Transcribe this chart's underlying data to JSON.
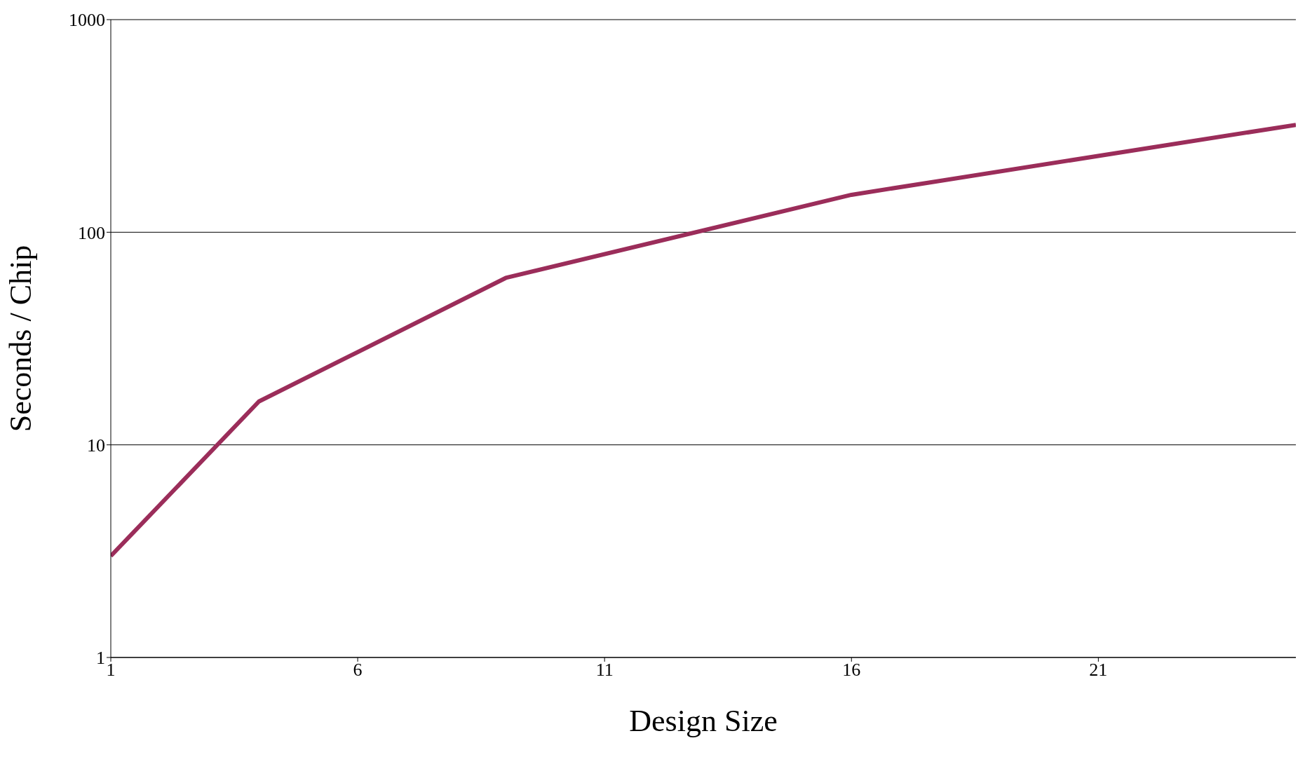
{
  "chart_data": {
    "type": "line",
    "xlabel": "Design Size",
    "ylabel": "Seconds / Chip",
    "x": [
      1,
      4,
      9,
      16,
      25
    ],
    "series": [
      {
        "color": "#9b2d5a",
        "values": [
          3,
          16,
          61,
          150,
          320
        ]
      }
    ],
    "xlim": [
      1,
      25
    ],
    "xticks": [
      1,
      6,
      11,
      16,
      21
    ],
    "ylim": [
      1,
      1000
    ],
    "yticks": [
      1,
      10,
      100,
      1000
    ],
    "log": "y",
    "grid": "y",
    "legend": false,
    "marker": "none",
    "line_style": "solid"
  }
}
